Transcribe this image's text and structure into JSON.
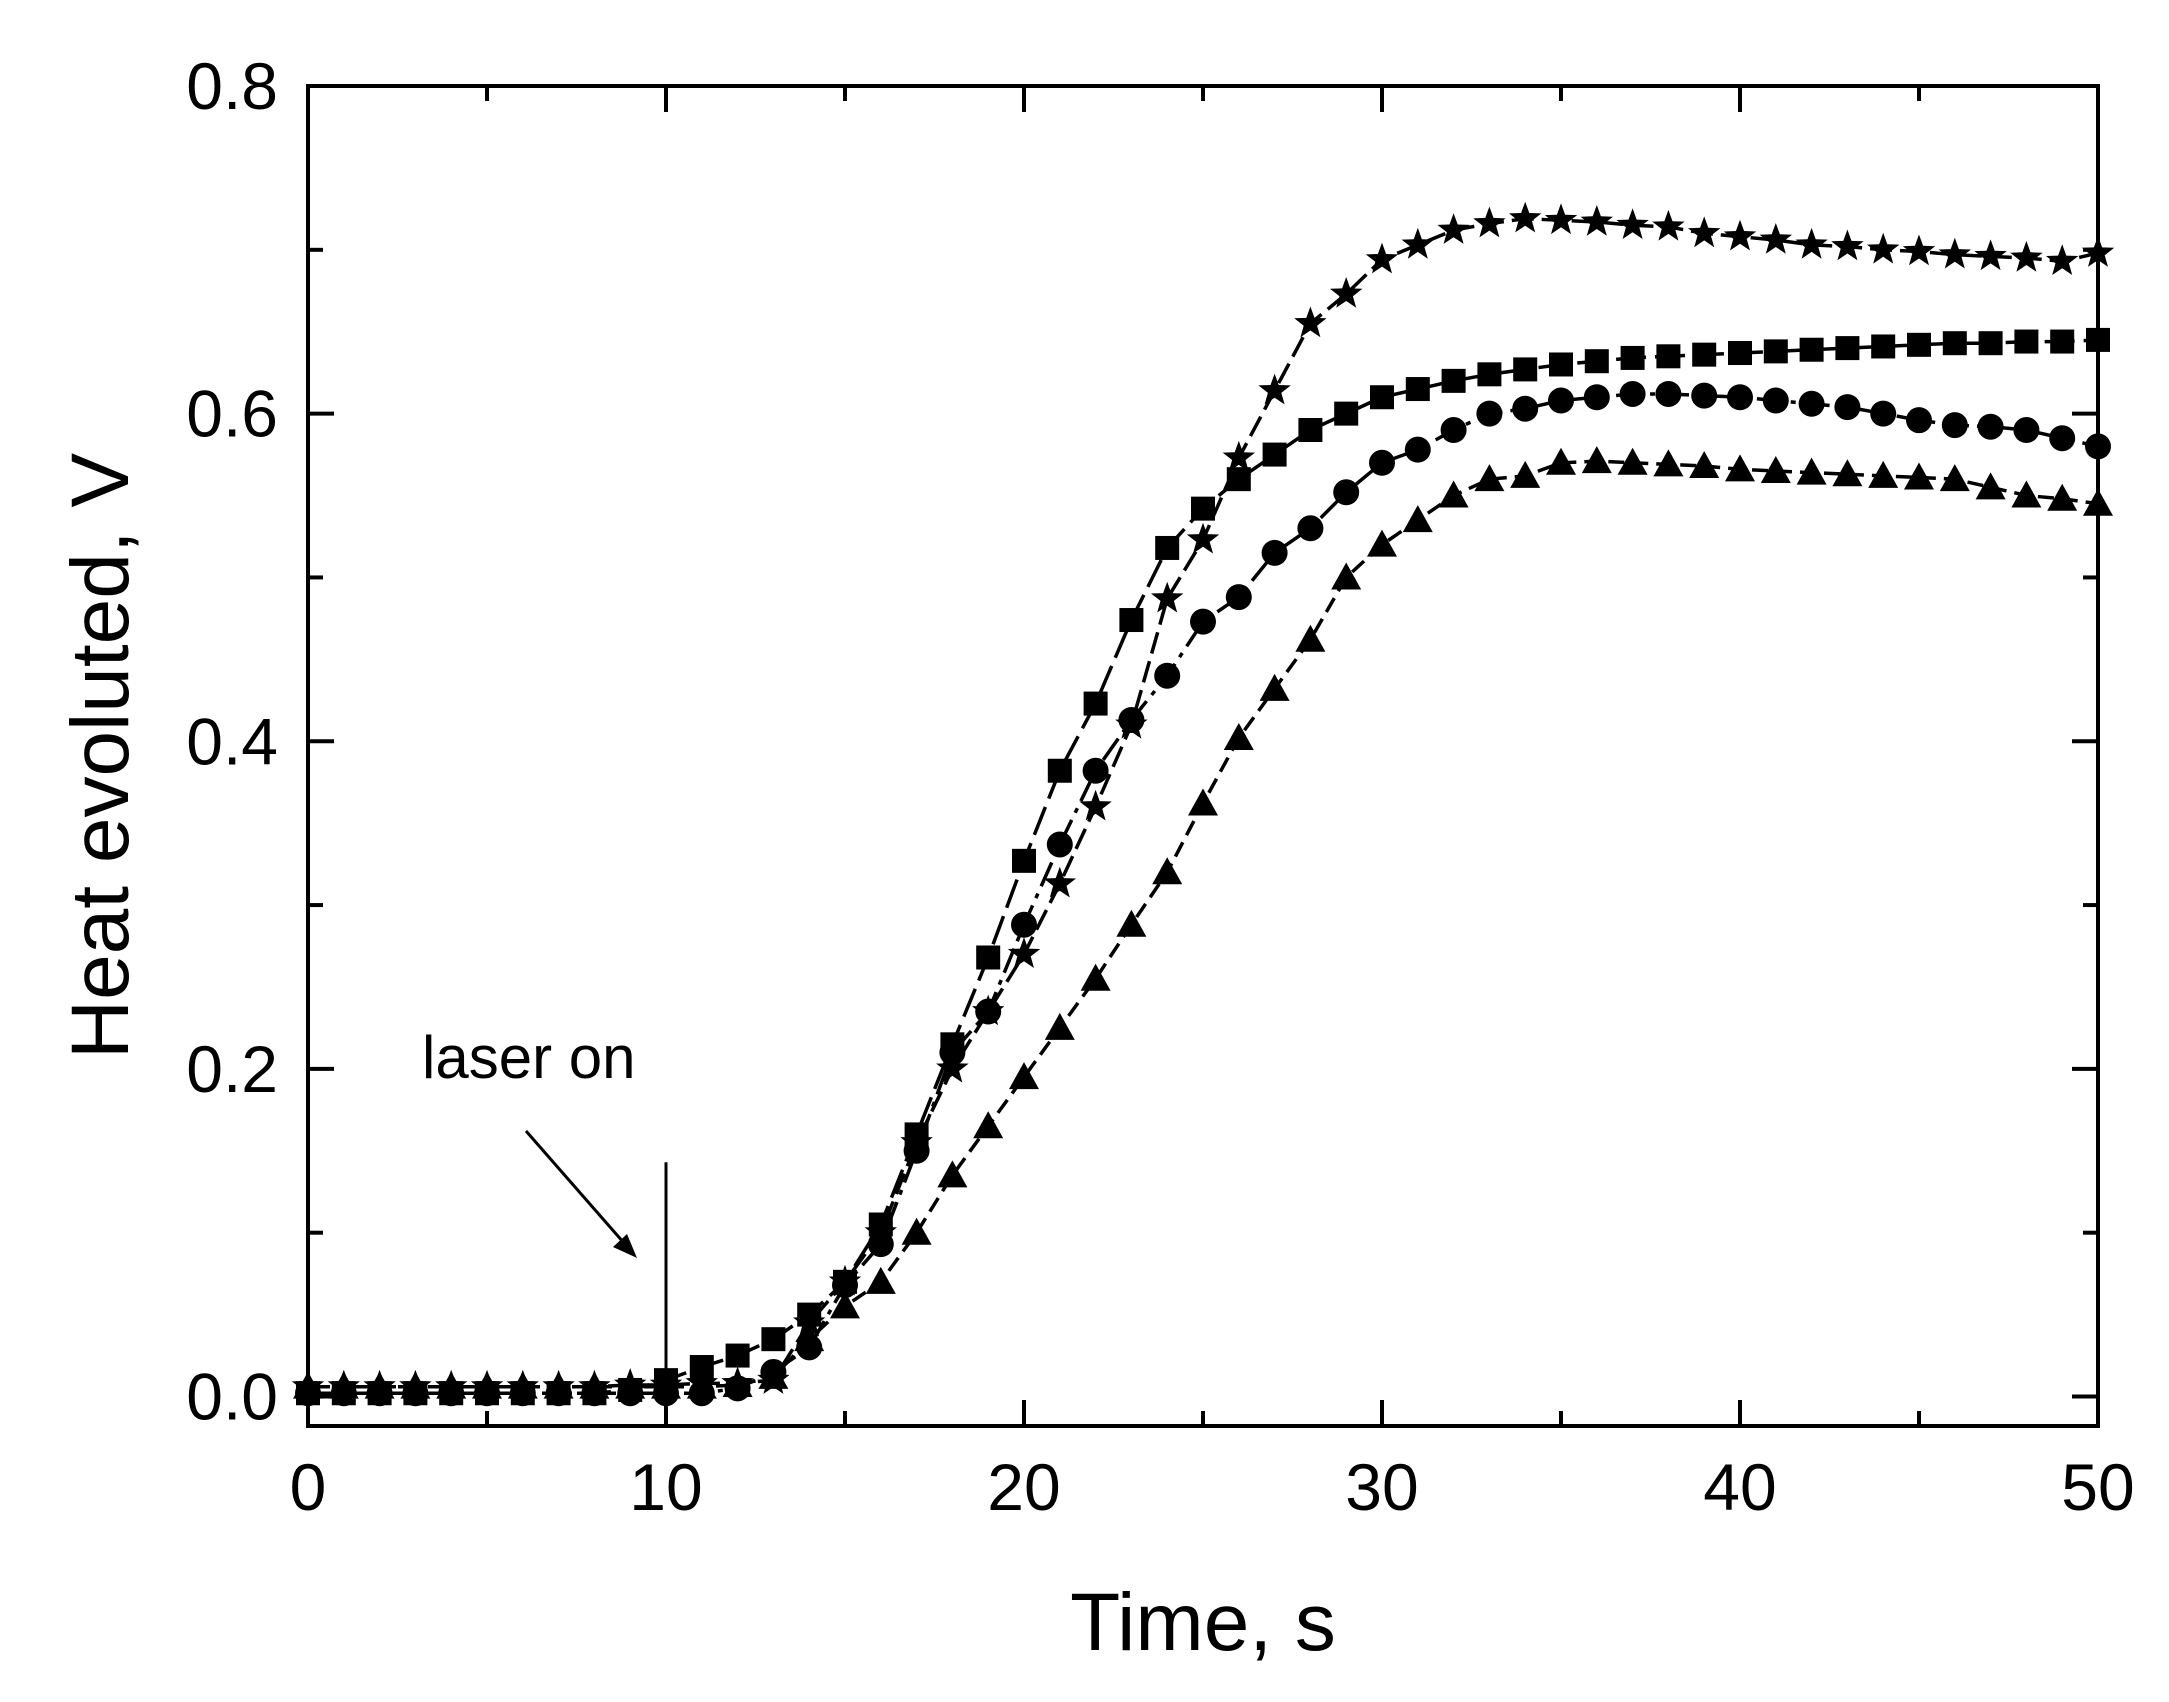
{
  "chart_data": {
    "type": "scatter",
    "title": "",
    "xlabel": "Time, s",
    "ylabel": "Heat evoluted, V",
    "xlim": [
      0,
      50
    ],
    "ylim": [
      -0.018,
      0.8
    ],
    "xticks": [
      0,
      10,
      20,
      30,
      40,
      50
    ],
    "xtick_labels": [
      "0",
      "10",
      "20",
      "30",
      "40",
      "50"
    ],
    "yticks": [
      0.0,
      0.2,
      0.4,
      0.6,
      0.8
    ],
    "ytick_labels": [
      "0.0",
      "0.2",
      "0.4",
      "0.6",
      "0.8"
    ],
    "grid": false,
    "annotations": [
      {
        "text": "laser on",
        "x": 10,
        "marker_line_y": [
          0.0,
          0.143
        ]
      }
    ],
    "series": [
      {
        "name": "squares",
        "marker": "square",
        "line": "long-dash",
        "x": [
          0,
          1,
          2,
          3,
          4,
          5,
          6,
          7,
          8,
          9,
          10,
          11,
          12,
          13,
          14,
          15,
          16,
          17,
          18,
          19,
          20,
          21,
          22,
          23,
          24,
          25,
          26,
          27,
          28,
          29,
          30,
          31,
          32,
          33,
          34,
          35,
          36,
          37,
          38,
          39,
          40,
          41,
          42,
          43,
          44,
          45,
          46,
          47,
          48,
          49,
          50
        ],
        "y": [
          0.002,
          0.002,
          0.002,
          0.002,
          0.002,
          0.002,
          0.002,
          0.002,
          0.002,
          0.004,
          0.01,
          0.018,
          0.025,
          0.035,
          0.05,
          0.07,
          0.105,
          0.16,
          0.215,
          0.268,
          0.327,
          0.382,
          0.423,
          0.474,
          0.518,
          0.542,
          0.56,
          0.575,
          0.59,
          0.6,
          0.61,
          0.615,
          0.62,
          0.624,
          0.627,
          0.63,
          0.632,
          0.634,
          0.635,
          0.636,
          0.637,
          0.638,
          0.639,
          0.64,
          0.641,
          0.642,
          0.643,
          0.643,
          0.644,
          0.644,
          0.645
        ]
      },
      {
        "name": "circles",
        "marker": "circle",
        "line": "dash-dot",
        "x": [
          0,
          1,
          2,
          3,
          4,
          5,
          6,
          7,
          8,
          9,
          10,
          11,
          12,
          13,
          14,
          15,
          16,
          17,
          18,
          19,
          20,
          21,
          22,
          23,
          24,
          25,
          26,
          27,
          28,
          29,
          30,
          31,
          32,
          33,
          34,
          35,
          36,
          37,
          38,
          39,
          40,
          41,
          42,
          43,
          44,
          45,
          46,
          47,
          48,
          49,
          50
        ],
        "y": [
          0.002,
          0.002,
          0.002,
          0.002,
          0.002,
          0.002,
          0.002,
          0.002,
          0.002,
          0.002,
          0.002,
          0.002,
          0.005,
          0.015,
          0.03,
          0.068,
          0.093,
          0.15,
          0.21,
          0.235,
          0.288,
          0.337,
          0.382,
          0.413,
          0.44,
          0.473,
          0.488,
          0.515,
          0.53,
          0.552,
          0.57,
          0.578,
          0.59,
          0.6,
          0.603,
          0.608,
          0.61,
          0.612,
          0.612,
          0.611,
          0.61,
          0.608,
          0.606,
          0.604,
          0.6,
          0.596,
          0.593,
          0.592,
          0.59,
          0.585,
          0.58
        ]
      },
      {
        "name": "stars",
        "marker": "star",
        "line": "dash",
        "x": [
          0,
          1,
          2,
          3,
          4,
          5,
          6,
          7,
          8,
          9,
          10,
          11,
          12,
          13,
          14,
          15,
          16,
          17,
          18,
          19,
          20,
          21,
          22,
          23,
          24,
          25,
          26,
          27,
          28,
          29,
          30,
          31,
          32,
          33,
          34,
          35,
          36,
          37,
          38,
          39,
          40,
          41,
          42,
          43,
          44,
          45,
          46,
          47,
          48,
          49,
          50
        ],
        "y": [
          0.006,
          0.006,
          0.006,
          0.006,
          0.006,
          0.006,
          0.006,
          0.006,
          0.006,
          0.007,
          0.007,
          0.008,
          0.008,
          0.01,
          0.045,
          0.07,
          0.1,
          0.155,
          0.2,
          0.235,
          0.27,
          0.313,
          0.36,
          0.41,
          0.487,
          0.523,
          0.573,
          0.614,
          0.655,
          0.673,
          0.694,
          0.703,
          0.712,
          0.716,
          0.719,
          0.718,
          0.717,
          0.715,
          0.714,
          0.71,
          0.708,
          0.706,
          0.703,
          0.702,
          0.7,
          0.699,
          0.697,
          0.696,
          0.695,
          0.693,
          0.698
        ]
      },
      {
        "name": "triangles",
        "marker": "triangle",
        "line": "short-dash",
        "x": [
          0,
          1,
          2,
          3,
          4,
          5,
          6,
          7,
          8,
          9,
          10,
          11,
          12,
          13,
          14,
          15,
          16,
          17,
          18,
          19,
          20,
          21,
          22,
          23,
          24,
          25,
          26,
          27,
          28,
          29,
          30,
          31,
          32,
          33,
          34,
          35,
          36,
          37,
          38,
          39,
          40,
          41,
          42,
          43,
          44,
          45,
          46,
          47,
          48,
          49,
          50
        ],
        "y": [
          0.006,
          0.006,
          0.006,
          0.006,
          0.006,
          0.006,
          0.006,
          0.006,
          0.006,
          0.006,
          0.006,
          0.006,
          0.007,
          0.012,
          0.035,
          0.055,
          0.07,
          0.1,
          0.135,
          0.165,
          0.195,
          0.225,
          0.255,
          0.288,
          0.32,
          0.362,
          0.402,
          0.432,
          0.462,
          0.5,
          0.52,
          0.535,
          0.55,
          0.56,
          0.562,
          0.57,
          0.571,
          0.57,
          0.569,
          0.568,
          0.566,
          0.565,
          0.564,
          0.563,
          0.562,
          0.561,
          0.56,
          0.555,
          0.55,
          0.548,
          0.545
        ]
      }
    ]
  }
}
